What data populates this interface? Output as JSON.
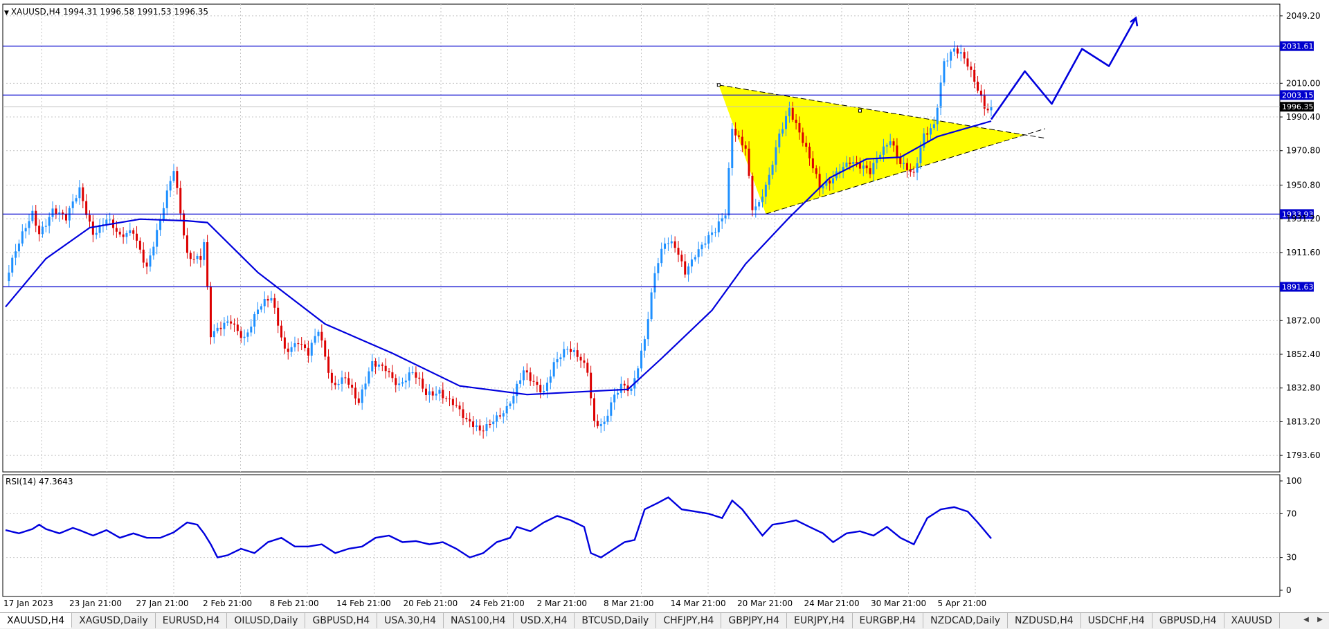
{
  "header": {
    "symbol": "XAUUSD,H4",
    "open": "1994.31",
    "high": "1996.58",
    "low": "1991.53",
    "close": "1996.35"
  },
  "rsi_label": "RSI(14) 47.3643",
  "tabs": [
    "XAUUSD,H4",
    "XAGUSD,Daily",
    "EURUSD,H4",
    "OILUSD,Daily",
    "GBPUSD,H4",
    "USA.30,H4",
    "NAS100,H4",
    "USD.X,H4",
    "BTCUSD,Daily",
    "CHFJPY,H4",
    "GBPJPY,H4",
    "EURJPY,H4",
    "EURGBP,H4",
    "NZDCAD,Daily",
    "NZDUSD,H4",
    "USDCHF,H4",
    "GBPUSD,H4",
    "XAUUSD"
  ],
  "active_tab": 0,
  "colors": {
    "bull": "#1e90ff",
    "bear": "#dc0000",
    "level_line": "#0000cd",
    "ma": "#0000dd",
    "triangle_fill": "#ffff00",
    "grid": "#c4c4c4",
    "price_tag_bg": "#0000cd",
    "current_price_bg": "#000000"
  },
  "chart_data": [
    {
      "type": "candlestick",
      "symbol": "XAUUSD",
      "timeframe": "H4",
      "x_tick_labels": [
        "17 Jan 2023",
        "23 Jan 21:00",
        "27 Jan 21:00",
        "2 Feb 21:00",
        "8 Feb 21:00",
        "14 Feb 21:00",
        "20 Feb 21:00",
        "24 Feb 21:00",
        "2 Mar 21:00",
        "8 Mar 21:00",
        "14 Mar 21:00",
        "20 Mar 21:00",
        "24 Mar 21:00",
        "30 Mar 21:00",
        "5 Apr 21:00"
      ],
      "y_tick_labels": [
        "2049.20",
        "2010.00",
        "1990.40",
        "1970.80",
        "1950.80",
        "1931.20",
        "1911.60",
        "1872.00",
        "1852.40",
        "1832.80",
        "1813.20",
        "1793.60"
      ],
      "ylim": [
        1784,
        2056
      ],
      "grid": true,
      "horizontal_levels": [
        2031.61,
        2003.15,
        1933.93,
        1891.63
      ],
      "current_price": 1996.35,
      "close_path": [
        [
          0,
          1895
        ],
        [
          4,
          1915
        ],
        [
          8,
          1935
        ],
        [
          10,
          1925
        ],
        [
          14,
          1937
        ],
        [
          18,
          1929
        ],
        [
          22,
          1948
        ],
        [
          26,
          1925
        ],
        [
          30,
          1931
        ],
        [
          34,
          1918
        ],
        [
          38,
          1925
        ],
        [
          42,
          1905
        ],
        [
          46,
          1929
        ],
        [
          50,
          1958
        ],
        [
          54,
          1912
        ],
        [
          58,
          1910
        ],
        [
          59,
          1918
        ],
        [
          61,
          1862
        ],
        [
          63,
          1864
        ],
        [
          67,
          1872
        ],
        [
          71,
          1864
        ],
        [
          75,
          1878
        ],
        [
          79,
          1883
        ],
        [
          83,
          1856
        ],
        [
          87,
          1862
        ],
        [
          90,
          1852
        ],
        [
          93,
          1864
        ],
        [
          97,
          1835
        ],
        [
          101,
          1842
        ],
        [
          105,
          1823
        ],
        [
          109,
          1845
        ],
        [
          113,
          1846
        ],
        [
          117,
          1836
        ],
        [
          121,
          1840
        ],
        [
          125,
          1828
        ],
        [
          129,
          1833
        ],
        [
          133,
          1825
        ],
        [
          137,
          1811
        ],
        [
          141,
          1808
        ],
        [
          145,
          1817
        ],
        [
          149,
          1820
        ],
        [
          151,
          1826
        ],
        [
          154,
          1841
        ],
        [
          158,
          1836
        ],
        [
          160,
          1833
        ],
        [
          163,
          1847
        ],
        [
          167,
          1853
        ],
        [
          171,
          1850
        ],
        [
          173,
          1845
        ],
        [
          175,
          1815
        ],
        [
          178,
          1812
        ],
        [
          180,
          1822
        ],
        [
          183,
          1832
        ],
        [
          186,
          1832
        ],
        [
          190,
          1864
        ],
        [
          193,
          1900
        ],
        [
          196,
          1915
        ],
        [
          199,
          1914
        ],
        [
          202,
          1902
        ],
        [
          205,
          1913
        ],
        [
          208,
          1918
        ],
        [
          211,
          1922
        ],
        [
          214,
          1933
        ],
        [
          216,
          1985
        ],
        [
          218,
          1980
        ],
        [
          220,
          1975
        ],
        [
          222,
          1938
        ],
        [
          224,
          1938
        ],
        [
          227,
          1953
        ],
        [
          230,
          1980
        ],
        [
          233,
          1998
        ],
        [
          236,
          1983
        ],
        [
          239,
          1965
        ],
        [
          242,
          1947
        ],
        [
          245,
          1953
        ],
        [
          248,
          1963
        ],
        [
          251,
          1966
        ],
        [
          254,
          1960
        ],
        [
          257,
          1956
        ],
        [
          260,
          1970
        ],
        [
          263,
          1980
        ],
        [
          266,
          1965
        ],
        [
          270,
          1954
        ],
        [
          273,
          1978
        ],
        [
          276,
          1987
        ],
        [
          279,
          2025
        ],
        [
          282,
          2030
        ],
        [
          285,
          2022
        ],
        [
          288,
          2010
        ],
        [
          291,
          1998
        ],
        [
          293,
          1996.35
        ]
      ],
      "moving_average": [
        [
          0,
          1880
        ],
        [
          12,
          1908
        ],
        [
          25,
          1926
        ],
        [
          40,
          1931
        ],
        [
          54,
          1930
        ],
        [
          60,
          1929
        ],
        [
          75,
          1900
        ],
        [
          95,
          1870
        ],
        [
          115,
          1853
        ],
        [
          135,
          1834
        ],
        [
          155,
          1829
        ],
        [
          175,
          1831
        ],
        [
          185,
          1832
        ],
        [
          195,
          1850
        ],
        [
          210,
          1878
        ],
        [
          220,
          1905
        ],
        [
          233,
          1932
        ],
        [
          245,
          1955
        ],
        [
          256,
          1966
        ],
        [
          266,
          1967
        ],
        [
          277,
          1979
        ],
        [
          293,
          1988
        ]
      ],
      "triangle_pattern": {
        "upper_start": [
          212,
          2009
        ],
        "upper_touch": [
          254,
          1994
        ],
        "apex": [
          303,
          1980
        ],
        "lower_start": [
          226,
          1934
        ]
      },
      "projection_path": [
        [
          293,
          1989
        ],
        [
          303,
          2017
        ],
        [
          311,
          1998
        ],
        [
          320,
          2030
        ],
        [
          328,
          2020
        ],
        [
          336,
          2048
        ]
      ]
    },
    {
      "type": "line",
      "name": "RSI(14)",
      "last_value": 47.3643,
      "ylim": [
        0,
        100
      ],
      "y_tick_labels": [
        "100",
        "70",
        "30",
        "0"
      ],
      "series": [
        {
          "name": "RSI(14)",
          "values": [
            [
              0,
              55
            ],
            [
              4,
              52
            ],
            [
              8,
              56
            ],
            [
              10,
              60
            ],
            [
              12,
              56
            ],
            [
              16,
              52
            ],
            [
              20,
              57
            ],
            [
              22,
              55
            ],
            [
              26,
              50
            ],
            [
              30,
              55
            ],
            [
              34,
              48
            ],
            [
              38,
              52
            ],
            [
              42,
              48
            ],
            [
              46,
              48
            ],
            [
              50,
              53
            ],
            [
              54,
              62
            ],
            [
              57,
              60
            ],
            [
              59,
              52
            ],
            [
              61,
              42
            ],
            [
              63,
              30
            ],
            [
              66,
              32
            ],
            [
              70,
              38
            ],
            [
              74,
              34
            ],
            [
              78,
              44
            ],
            [
              82,
              48
            ],
            [
              86,
              40
            ],
            [
              90,
              40
            ],
            [
              94,
              42
            ],
            [
              98,
              34
            ],
            [
              102,
              38
            ],
            [
              106,
              40
            ],
            [
              110,
              48
            ],
            [
              114,
              50
            ],
            [
              118,
              44
            ],
            [
              122,
              45
            ],
            [
              126,
              42
            ],
            [
              130,
              44
            ],
            [
              134,
              38
            ],
            [
              138,
              30
            ],
            [
              142,
              34
            ],
            [
              146,
              44
            ],
            [
              150,
              48
            ],
            [
              152,
              58
            ],
            [
              156,
              54
            ],
            [
              160,
              62
            ],
            [
              164,
              68
            ],
            [
              168,
              64
            ],
            [
              172,
              58
            ],
            [
              174,
              34
            ],
            [
              177,
              30
            ],
            [
              180,
              36
            ],
            [
              184,
              44
            ],
            [
              187,
              46
            ],
            [
              190,
              74
            ],
            [
              194,
              80
            ],
            [
              197,
              85
            ],
            [
              201,
              74
            ],
            [
              205,
              72
            ],
            [
              209,
              70
            ],
            [
              213,
              66
            ],
            [
              216,
              82
            ],
            [
              219,
              74
            ],
            [
              222,
              62
            ],
            [
              225,
              50
            ],
            [
              228,
              60
            ],
            [
              232,
              62
            ],
            [
              235,
              64
            ],
            [
              239,
              58
            ],
            [
              243,
              52
            ],
            [
              246,
              44
            ],
            [
              250,
              52
            ],
            [
              254,
              54
            ],
            [
              258,
              50
            ],
            [
              262,
              58
            ],
            [
              266,
              48
            ],
            [
              270,
              42
            ],
            [
              274,
              66
            ],
            [
              278,
              74
            ],
            [
              282,
              76
            ],
            [
              286,
              72
            ],
            [
              289,
              62
            ],
            [
              293,
              47.3643
            ]
          ]
        }
      ]
    }
  ]
}
